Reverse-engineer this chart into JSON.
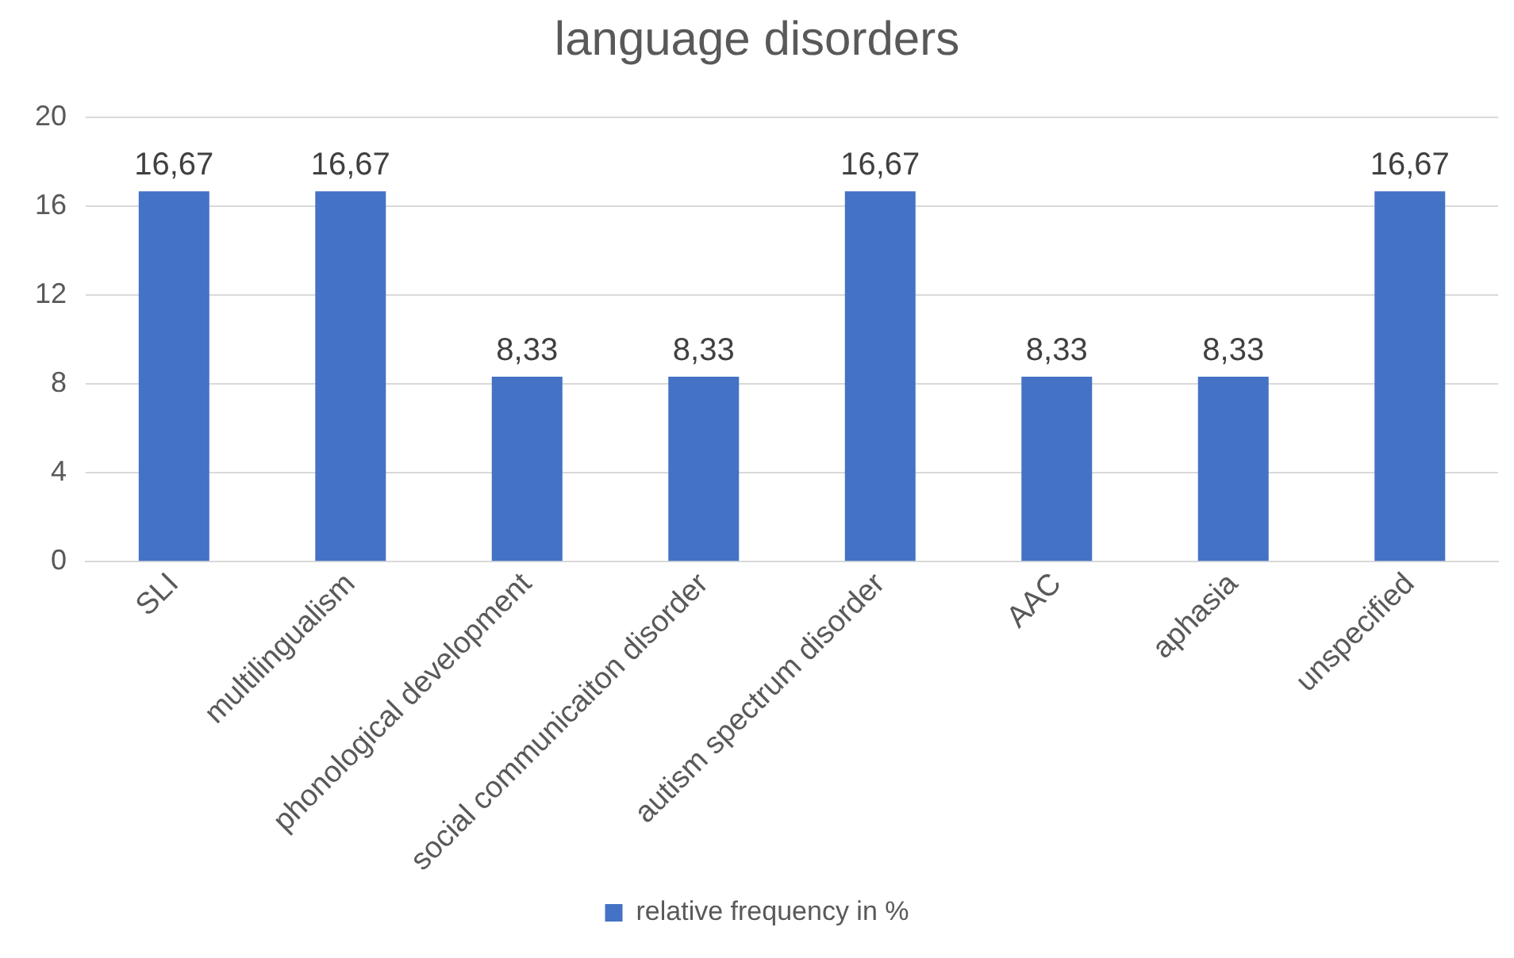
{
  "chart_data": {
    "type": "bar",
    "title": "language disorders",
    "categories": [
      "SLI",
      "multilingualism",
      "phonological development",
      "social communicaiton disorder",
      "autism spectrum disorder",
      "AAC",
      "aphasia",
      "unspecified"
    ],
    "series": [
      {
        "name": "relative frequency in %",
        "color": "#4472c4",
        "values": [
          16.67,
          16.67,
          8.33,
          8.33,
          16.67,
          8.33,
          8.33,
          16.67
        ],
        "value_labels": [
          "16,67",
          "16,67",
          "8,33",
          "8,33",
          "16,67",
          "8,33",
          "8,33",
          "16,67"
        ]
      }
    ],
    "ylim": [
      0,
      20
    ],
    "yticks": [
      0,
      4,
      8,
      12,
      16,
      20
    ],
    "grid": "y",
    "legend": "bottom"
  }
}
